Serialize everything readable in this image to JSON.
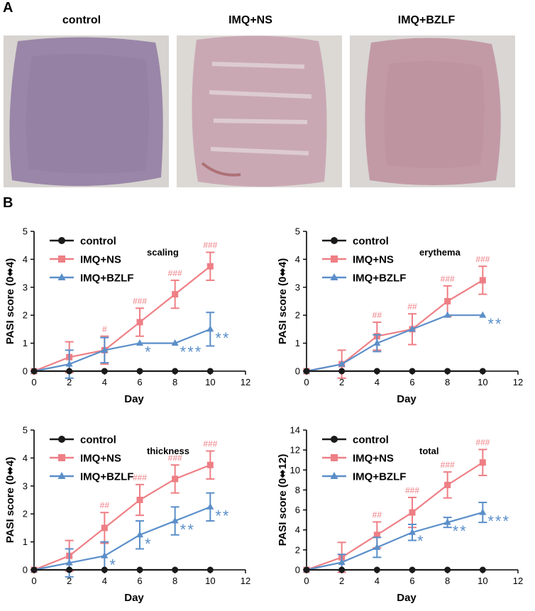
{
  "figure": {
    "panel_a": "A",
    "panel_b": "B"
  },
  "photos": [
    {
      "label": "control",
      "lesion": "#9a86a8",
      "fur": "#d6d3d0"
    },
    {
      "label": "IMQ+NS",
      "lesion": "#c9a8b4",
      "fur": "#dcd8d4"
    },
    {
      "label": "IMQ+BZLF",
      "lesion": "#c29aa6",
      "fur": "#d9d6d3"
    }
  ],
  "colors": {
    "control": "#1a1a1a",
    "ns": "#ee7f85",
    "bzlf": "#5b8fc9"
  },
  "chart_data": [
    {
      "type": "line",
      "title": "scaling",
      "xlabel": "Day",
      "ylabel": "PASI score (0⬌4)",
      "xlim": [
        0,
        12
      ],
      "ylim": [
        0,
        5
      ],
      "xticks": [
        "0",
        "2",
        "4",
        "6",
        "8",
        "10",
        "12"
      ],
      "yticks": [
        "0",
        "1",
        "2",
        "3",
        "4",
        "5"
      ],
      "x": [
        0,
        2,
        4,
        6,
        8,
        10
      ],
      "series": [
        {
          "name": "control",
          "key": "control",
          "marker": "circle",
          "values": [
            0,
            0,
            0,
            0,
            0,
            0
          ],
          "errors": [
            0,
            0,
            0,
            0,
            0,
            0
          ],
          "x": [
            0,
            2,
            4,
            6,
            8,
            10
          ]
        },
        {
          "name": "IMQ+NS",
          "key": "ns",
          "marker": "square",
          "values": [
            0,
            0.5,
            0.75,
            1.75,
            2.75,
            3.75
          ],
          "errors": [
            0,
            0.55,
            0.5,
            0.5,
            0.5,
            0.5
          ],
          "x": [
            0,
            2,
            4,
            6,
            8,
            10
          ]
        },
        {
          "name": "IMQ+BZLF",
          "key": "bzlf",
          "marker": "triangle",
          "values": [
            0,
            0.25,
            0.75,
            1.0,
            1.0,
            1.5
          ],
          "errors": [
            0,
            0.5,
            0.45,
            0,
            0,
            0.6
          ],
          "x": [
            0,
            2,
            4,
            6,
            8,
            10
          ]
        }
      ],
      "ns_marks": [
        {
          "x": 4,
          "text": "#"
        },
        {
          "x": 6,
          "text": "###"
        },
        {
          "x": 8,
          "text": "###"
        },
        {
          "x": 10,
          "text": "###"
        }
      ],
      "bzlf_marks": [
        {
          "x": 6,
          "y": 1.0,
          "text": "*"
        },
        {
          "x": 8,
          "y": 1.0,
          "text": "***"
        },
        {
          "x": 10,
          "y": 1.5,
          "text": "**"
        }
      ]
    },
    {
      "type": "line",
      "title": "erythema",
      "xlabel": "Day",
      "ylabel": "PASI score (0⬌4)",
      "xlim": [
        0,
        12
      ],
      "ylim": [
        0,
        5
      ],
      "xticks": [
        "0",
        "2",
        "4",
        "6",
        "8",
        "10",
        "12"
      ],
      "yticks": [
        "0",
        "1",
        "2",
        "3",
        "4",
        "5"
      ],
      "series": [
        {
          "name": "control",
          "key": "control",
          "marker": "circle",
          "values": [
            0,
            0,
            0,
            0,
            0,
            0
          ],
          "errors": [
            0,
            0,
            0,
            0,
            0,
            0
          ],
          "x": [
            0,
            2,
            4,
            6,
            8,
            10
          ]
        },
        {
          "name": "IMQ+NS",
          "key": "ns",
          "marker": "square",
          "values": [
            0,
            0.25,
            1.25,
            1.5,
            2.5,
            3.25
          ],
          "errors": [
            0,
            0.5,
            0.5,
            0.55,
            0.55,
            0.5
          ],
          "x": [
            0,
            2,
            4,
            6,
            8,
            10
          ]
        },
        {
          "name": "IMQ+BZLF",
          "key": "bzlf",
          "marker": "triangle",
          "values": [
            0,
            0.25,
            1.0,
            1.5,
            2.0,
            2.0
          ],
          "errors": [
            0,
            0,
            0.3,
            0,
            0,
            0
          ],
          "x": [
            0,
            2,
            4,
            6,
            8,
            10
          ]
        }
      ],
      "ns_marks": [
        {
          "x": 4,
          "text": "##"
        },
        {
          "x": 6,
          "text": "##"
        },
        {
          "x": 8,
          "text": "###"
        },
        {
          "x": 10,
          "text": "###"
        }
      ],
      "bzlf_marks": [
        {
          "x": 10,
          "y": 2.0,
          "text": "**"
        }
      ]
    },
    {
      "type": "line",
      "title": "thickness",
      "xlabel": "Day",
      "ylabel": "PASI score (0⬌4)",
      "xlim": [
        0,
        12
      ],
      "ylim": [
        0,
        5
      ],
      "xticks": [
        "0",
        "2",
        "4",
        "6",
        "8",
        "10",
        "12"
      ],
      "yticks": [
        "0",
        "1",
        "2",
        "3",
        "4",
        "5"
      ],
      "series": [
        {
          "name": "control",
          "key": "control",
          "marker": "circle",
          "values": [
            0,
            0,
            0,
            0,
            0,
            0
          ],
          "errors": [
            0,
            0,
            0,
            0,
            0,
            0
          ],
          "x": [
            0,
            2,
            4,
            6,
            8,
            10
          ]
        },
        {
          "name": "IMQ+NS",
          "key": "ns",
          "marker": "square",
          "values": [
            0,
            0.5,
            1.5,
            2.5,
            3.25,
            3.75
          ],
          "errors": [
            0,
            0.55,
            0.55,
            0.55,
            0.5,
            0.5
          ],
          "x": [
            0,
            2,
            4,
            6,
            8,
            10
          ]
        },
        {
          "name": "IMQ+BZLF",
          "key": "bzlf",
          "marker": "triangle",
          "values": [
            0,
            0.25,
            0.5,
            1.25,
            1.75,
            2.25
          ],
          "errors": [
            0,
            0.5,
            0.5,
            0.5,
            0.5,
            0.5
          ],
          "x": [
            0,
            2,
            4,
            6,
            8,
            10
          ]
        }
      ],
      "ns_marks": [
        {
          "x": 4,
          "text": "##"
        },
        {
          "x": 6,
          "text": "###"
        },
        {
          "x": 8,
          "text": "###"
        },
        {
          "x": 10,
          "text": "###"
        }
      ],
      "bzlf_marks": [
        {
          "x": 4,
          "y": 0.5,
          "text": "*"
        },
        {
          "x": 6,
          "y": 1.25,
          "text": "*"
        },
        {
          "x": 8,
          "y": 1.75,
          "text": "**"
        },
        {
          "x": 10,
          "y": 2.25,
          "text": "**"
        }
      ]
    },
    {
      "type": "line",
      "title": "total",
      "xlabel": "Day",
      "ylabel": "PASI score (0⬌12)",
      "xlim": [
        0,
        12
      ],
      "ylim": [
        0,
        14
      ],
      "xticks": [
        "0",
        "2",
        "4",
        "6",
        "8",
        "10",
        "12"
      ],
      "yticks": [
        "0",
        "2",
        "4",
        "6",
        "8",
        "10",
        "12",
        "14"
      ],
      "series": [
        {
          "name": "control",
          "key": "control",
          "marker": "circle",
          "values": [
            0,
            0,
            0,
            0,
            0,
            0
          ],
          "errors": [
            0,
            0,
            0,
            0,
            0,
            0
          ],
          "x": [
            0,
            2,
            4,
            6,
            8,
            10
          ]
        },
        {
          "name": "IMQ+NS",
          "key": "ns",
          "marker": "square",
          "values": [
            0,
            1.25,
            3.5,
            5.75,
            8.5,
            10.75
          ],
          "errors": [
            0,
            1.5,
            1.3,
            1.5,
            1.3,
            1.3
          ],
          "x": [
            0,
            2,
            4,
            6,
            8,
            10
          ]
        },
        {
          "name": "IMQ+BZLF",
          "key": "bzlf",
          "marker": "triangle",
          "values": [
            0,
            0.75,
            2.25,
            3.75,
            4.75,
            5.75
          ],
          "errors": [
            0,
            0.8,
            1.0,
            0.8,
            0.5,
            1.0
          ],
          "x": [
            0,
            2,
            4,
            6,
            8,
            10
          ]
        }
      ],
      "ns_marks": [
        {
          "x": 4,
          "text": "##"
        },
        {
          "x": 6,
          "text": "###"
        },
        {
          "x": 8,
          "text": "###"
        },
        {
          "x": 10,
          "text": "###"
        }
      ],
      "bzlf_marks": [
        {
          "x": 6,
          "y": 3.75,
          "text": "*"
        },
        {
          "x": 8,
          "y": 4.75,
          "text": "**"
        },
        {
          "x": 10,
          "y": 5.75,
          "text": "***"
        }
      ]
    }
  ]
}
